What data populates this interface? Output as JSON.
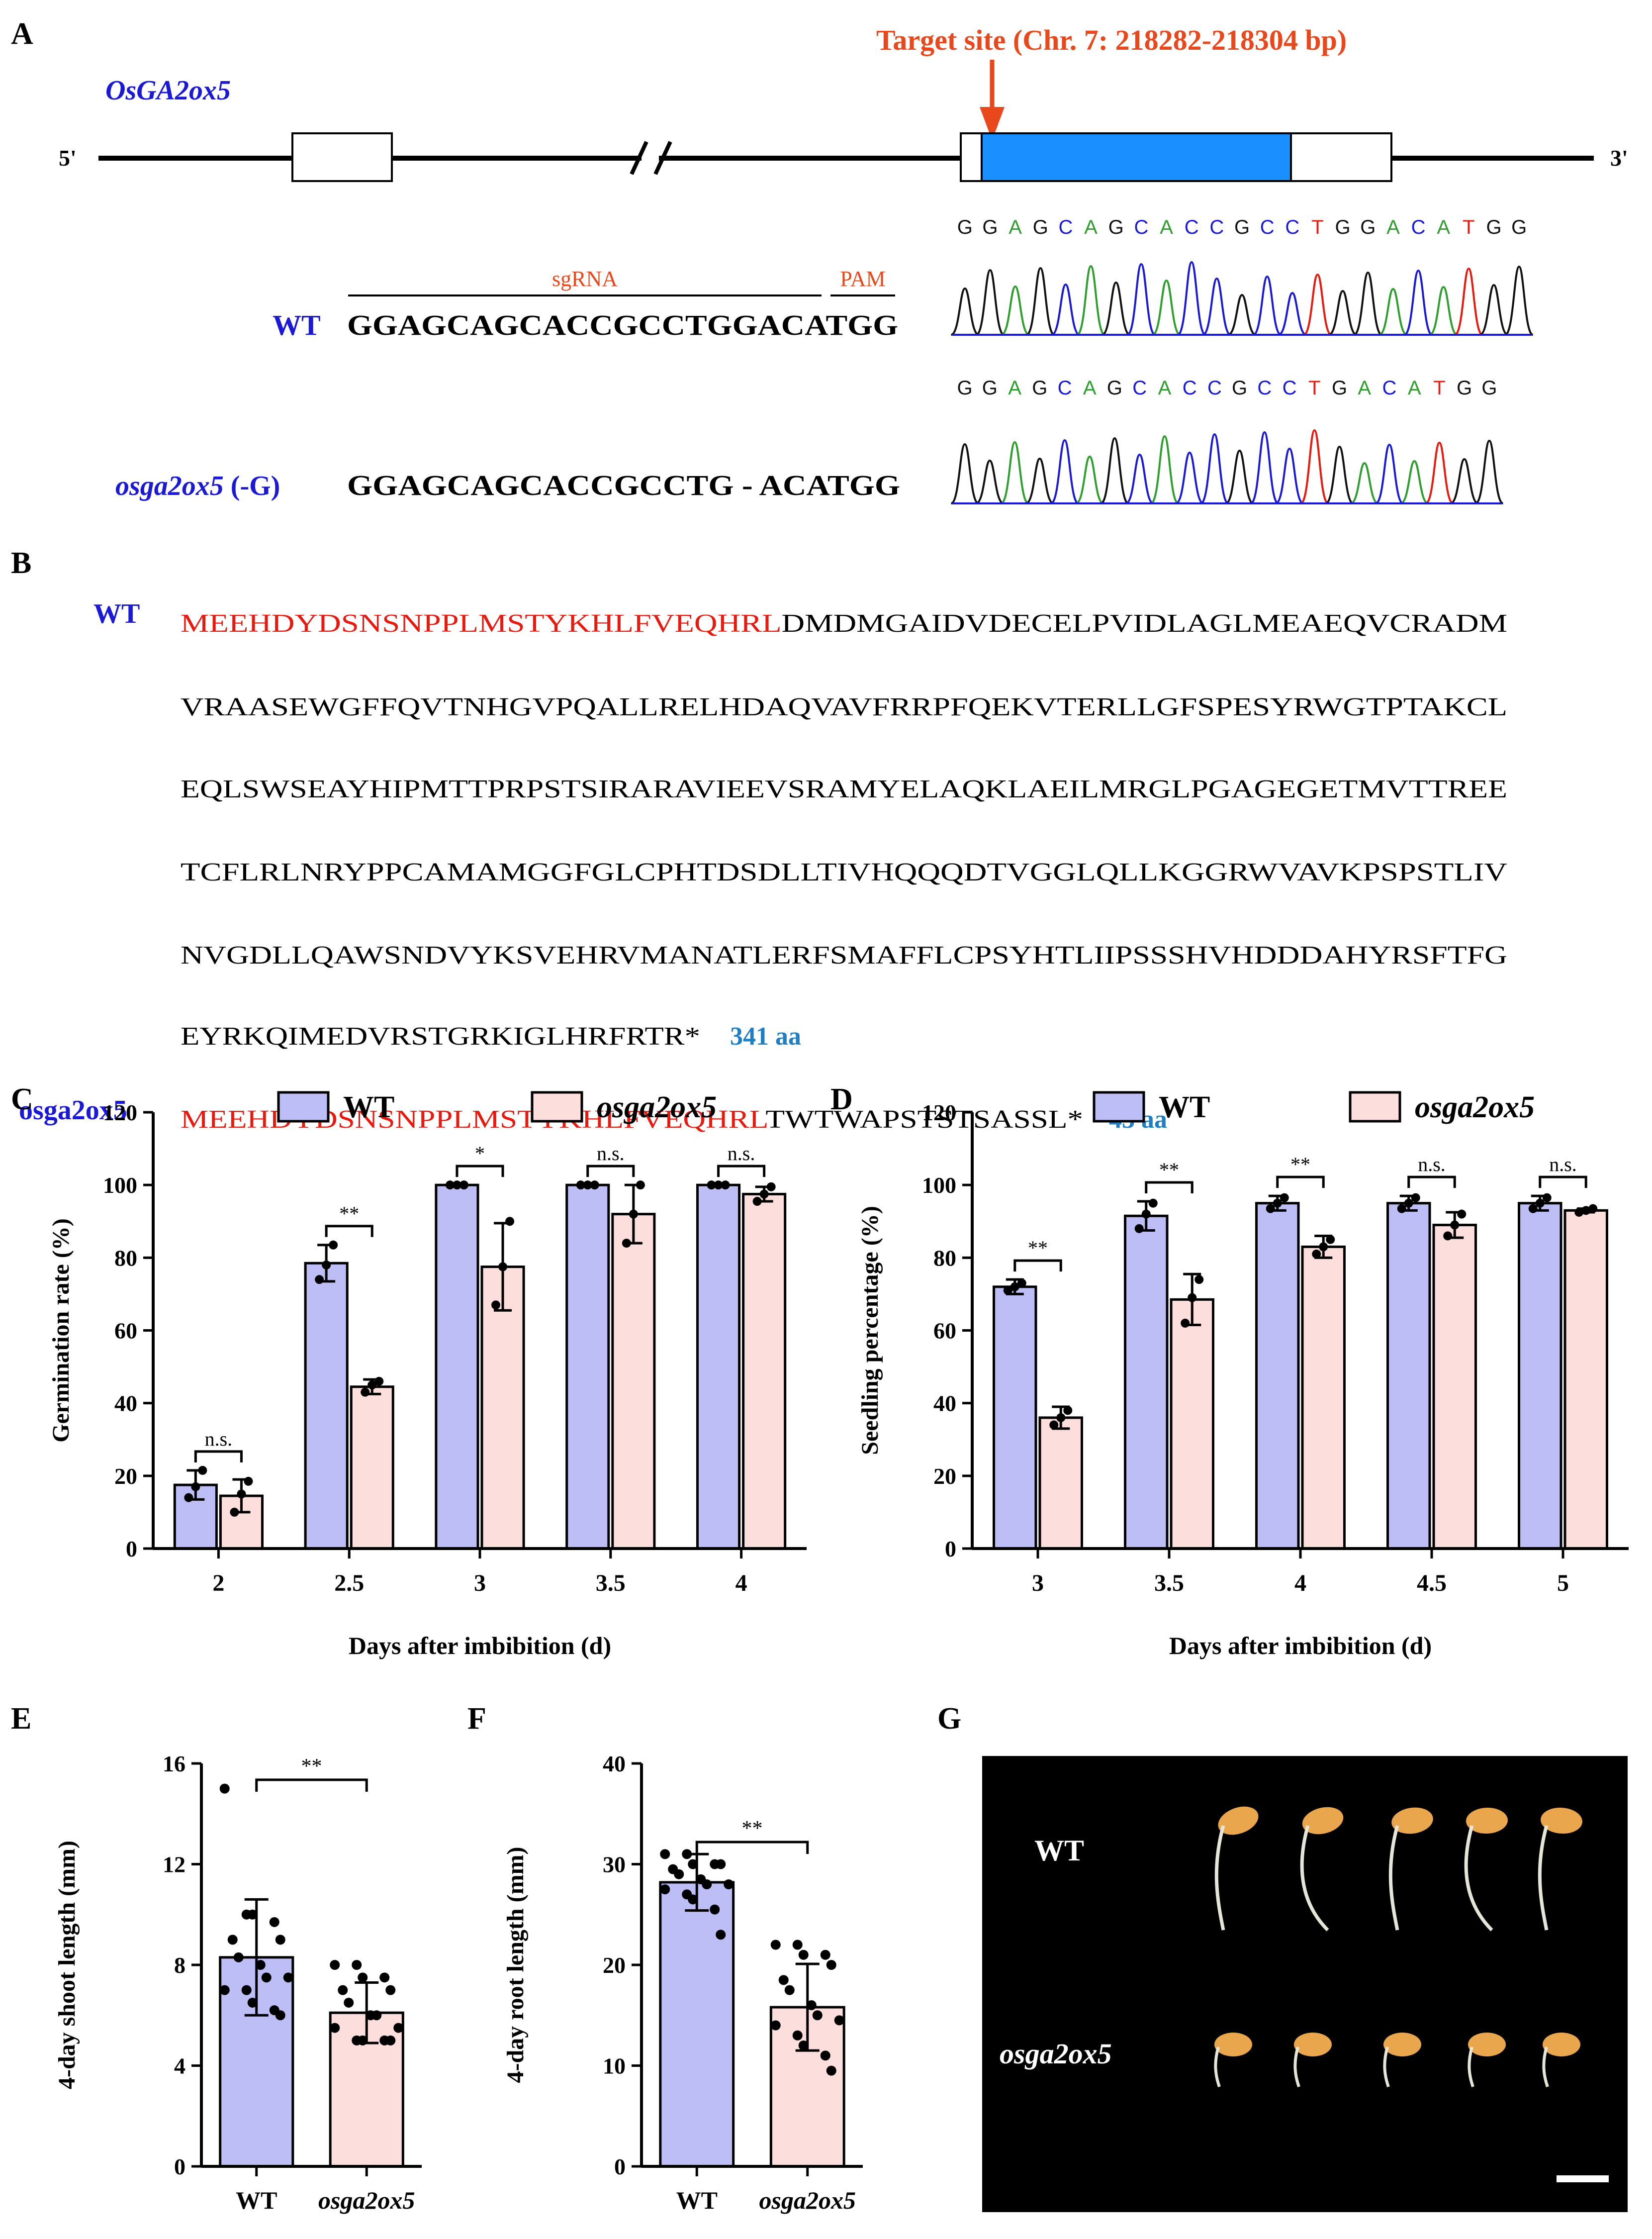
{
  "colors": {
    "wt_fill": "#bebef7",
    "mut_fill": "#fcdedd",
    "blue_text": "#1a1ad6",
    "red_text": "#e8190e",
    "orange": "#e8481b",
    "aa_blue": "#1f7fc4",
    "exon_blue": "#1a8fff"
  },
  "panel_labels": {
    "A": "A",
    "B": "B",
    "C": "C",
    "D": "D",
    "E": "E",
    "F": "F",
    "G": "G"
  },
  "panel_a": {
    "gene_name": "OsGA2ox5",
    "target_site": "Target site (Chr. 7: 218282-218304 bp)",
    "five_prime": "5'",
    "three_prime": "3'",
    "sgrna_label": "sgRNA",
    "pam_label": "PAM",
    "wt_label": "WT",
    "wt_seq": "GGAGCAGCACCGCCTGGACATGG",
    "mut_label": "osga2ox5",
    "mut_suffix": " (-G)",
    "mut_seq": "GGAGCAGCACCGCCTG - ACATGG",
    "chrom_wt_bases": [
      "G",
      "G",
      "A",
      "G",
      "C",
      "A",
      "G",
      "C",
      "A",
      "C",
      "C",
      "G",
      "C",
      "C",
      "T",
      "G",
      "G",
      "A",
      "C",
      "A",
      "T",
      "G",
      "G"
    ],
    "chrom_mut_bases": [
      "G",
      "G",
      "A",
      "G",
      "C",
      "A",
      "G",
      "C",
      "A",
      "C",
      "C",
      "G",
      "C",
      "C",
      "T",
      "G",
      "A",
      "C",
      "A",
      "T",
      "G",
      "G"
    ]
  },
  "panel_b": {
    "wt_label": "WT",
    "wt_red": "MEEHDYDSNSNPPLMSTYKHLFVEQHRL",
    "wt_line1_rest": "DMDMGAIDVDECELPVIDLAGLMEAEQVCRADM",
    "wt_lines": [
      "VRAASEWGFFQVTNHGVPQALLRELHDAQVAVFRRPFQEKVTERLLGFSPESYRWGTPTAKCL",
      "EQLSWSEAYHIPMTTPRPSTSIRARAVIEEVSRAMYELAQKLAEILMRGLPGAGEGETMVTTREE",
      "TCFLRLNRYPPCAMAMGGFGLCPHTDSDLLTIVHQQQDTVGGLQLLKGGRWVAVKPSPSTLIV",
      "NVGDLLQAWSNDVYKSVEHRVMANATLERFSMAFFLCPSYHTLIIPSSSHVHDDDAHYRSFTFG"
    ],
    "wt_last": "EYRKQIMEDVRSTGRKIGLHRFRTR*",
    "wt_len": "341 aa",
    "mut_label": "osga2ox5",
    "mut_red": "MEEHDYDSNSNPPLMSTYKHLFVEQHRL",
    "mut_rest": "TWTWAPSTSTSASSL*",
    "mut_len": "43 aa"
  },
  "chart_data": [
    {
      "id": "C",
      "type": "bar",
      "legend": [
        "WT",
        "osga2ox5"
      ],
      "categories": [
        "2",
        "2.5",
        "3",
        "3.5",
        "4"
      ],
      "series": [
        {
          "name": "WT",
          "values": [
            17.5,
            78.5,
            100,
            100,
            100
          ],
          "errors": [
            4,
            5,
            0,
            0,
            0
          ],
          "points": [
            [
              14,
              17,
              21.5
            ],
            [
              74,
              78,
              83.5
            ],
            [
              100,
              100,
              100
            ],
            [
              100,
              100,
              100
            ],
            [
              100,
              100,
              100
            ]
          ]
        },
        {
          "name": "osga2ox5",
          "values": [
            14.5,
            44.5,
            77.5,
            92,
            97.5
          ],
          "errors": [
            4.5,
            2,
            12,
            8,
            2
          ],
          "points": [
            [
              10,
              15,
              18.5
            ],
            [
              43,
              45,
              46
            ],
            [
              67,
              77.5,
              90
            ],
            [
              84,
              92,
              100
            ],
            [
              95.5,
              97.5,
              99.5
            ]
          ]
        }
      ],
      "significance": [
        "n.s.",
        "**",
        "*",
        "n.s.",
        "n.s."
      ],
      "ylabel": "Germination rate (%)",
      "xlabel": "Days after imbibition (d)",
      "ylim": [
        0,
        120
      ],
      "yticks": [
        "0",
        "20",
        "40",
        "60",
        "80",
        "100",
        "120"
      ]
    },
    {
      "id": "D",
      "type": "bar",
      "legend": [
        "WT",
        "osga2ox5"
      ],
      "categories": [
        "3",
        "3.5",
        "4",
        "4.5",
        "5"
      ],
      "series": [
        {
          "name": "WT",
          "values": [
            72,
            91.5,
            95,
            95,
            95
          ],
          "errors": [
            2,
            4,
            2,
            2,
            2
          ],
          "points": [
            [
              71,
              72,
              73
            ],
            [
              88,
              92,
              95
            ],
            [
              93.5,
              95,
              96.5
            ],
            [
              93.5,
              95,
              96.5
            ],
            [
              93.5,
              95,
              96.5
            ]
          ]
        },
        {
          "name": "osga2ox5",
          "values": [
            36,
            68.5,
            83,
            89,
            93
          ],
          "errors": [
            3,
            7,
            3,
            3.5,
            0.5
          ],
          "points": [
            [
              34,
              36,
              38
            ],
            [
              62,
              69,
              74
            ],
            [
              81,
              83,
              85
            ],
            [
              86,
              89,
              92
            ],
            [
              92.5,
              93,
              93.5
            ]
          ]
        }
      ],
      "significance": [
        "**",
        "**",
        "**",
        "n.s.",
        "n.s."
      ],
      "ylabel": "Seedling percentage (%)",
      "xlabel": "Days after imbibition (d)",
      "ylim": [
        0,
        120
      ],
      "yticks": [
        "0",
        "20",
        "40",
        "60",
        "80",
        "100",
        "120"
      ]
    },
    {
      "id": "E",
      "type": "bar",
      "categories": [
        "WT",
        "osga2ox5"
      ],
      "values": [
        8.3,
        6.1
      ],
      "errors": [
        2.3,
        1.2
      ],
      "points": [
        [
          15,
          10,
          10,
          9.7,
          9,
          9,
          8.3,
          8,
          7.5,
          7.5,
          7,
          7,
          6.5,
          6.2,
          6
        ],
        [
          8,
          8,
          7.5,
          7.5,
          7,
          7,
          6.5,
          6,
          6,
          5.5,
          5.5,
          5,
          5,
          5,
          5
        ]
      ],
      "significance": "**",
      "ylabel": "4-day shoot length (mm)",
      "ylim": [
        0,
        16
      ],
      "yticks": [
        "0",
        "4",
        "8",
        "12",
        "16"
      ]
    },
    {
      "id": "F",
      "type": "bar",
      "categories": [
        "WT",
        "osga2ox5"
      ],
      "values": [
        28.2,
        15.8
      ],
      "errors": [
        2.8,
        4.3
      ],
      "points": [
        [
          31,
          31,
          30,
          30,
          30,
          29.5,
          29,
          28.5,
          28,
          28,
          27.5,
          27,
          26.5,
          25.5,
          23
        ],
        [
          22,
          22,
          21,
          21,
          20,
          18.5,
          17.5,
          16,
          15,
          14.5,
          14,
          13,
          12,
          11,
          9.5
        ]
      ],
      "significance": "**",
      "ylabel": "4-day root length (mm)",
      "ylim": [
        0,
        40
      ],
      "yticks": [
        "0",
        "10",
        "20",
        "30",
        "40"
      ]
    }
  ],
  "panel_g": {
    "wt_label": "WT",
    "mut_label": "osga2ox5"
  }
}
